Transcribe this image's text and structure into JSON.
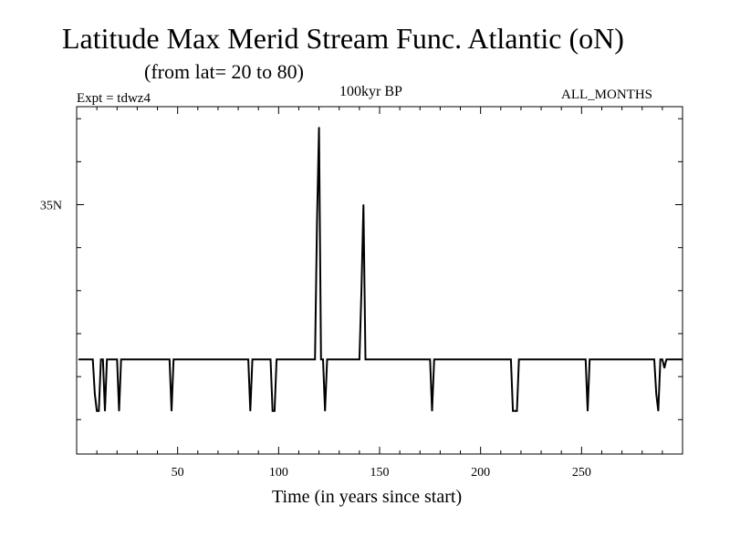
{
  "chart_data": {
    "type": "line",
    "title": "Latitude Max Merid Stream Func. Atlantic (oN)",
    "subtitle": "(from lat= 20 to 80)",
    "experiment": "Expt = tdwz4",
    "period": "100kyr BP",
    "months": "ALL_MONTHS",
    "xlabel": "Time (in years since start)",
    "ylabel": "",
    "xlim": [
      0,
      300
    ],
    "ylim": [
      20.5,
      40.7
    ],
    "x_ticks": [
      50,
      100,
      150,
      200,
      250
    ],
    "x_tick_labels": [
      "50",
      "100",
      "150",
      "200",
      "250"
    ],
    "y_ticks": [
      35
    ],
    "y_tick_labels": [
      "35N"
    ],
    "grid": false,
    "series": [
      {
        "color": "#000000",
        "points": [
          [
            1,
            26.0
          ],
          [
            8,
            26.0
          ],
          [
            9,
            24.0
          ],
          [
            10,
            23.0
          ],
          [
            11,
            23.0
          ],
          [
            12,
            26.0
          ],
          [
            13,
            26.0
          ],
          [
            14,
            23.0
          ],
          [
            15,
            26.0
          ],
          [
            20,
            26.0
          ],
          [
            21,
            23.0
          ],
          [
            22,
            26.0
          ],
          [
            46,
            26.0
          ],
          [
            47,
            23.0
          ],
          [
            48,
            26.0
          ],
          [
            85,
            26.0
          ],
          [
            86,
            23.0
          ],
          [
            87,
            26.0
          ],
          [
            96,
            26.0
          ],
          [
            97,
            23.0
          ],
          [
            98,
            23.0
          ],
          [
            99,
            26.0
          ],
          [
            118,
            26.0
          ],
          [
            119,
            34.0
          ],
          [
            120,
            39.5
          ],
          [
            121,
            26.0
          ],
          [
            122,
            26.0
          ],
          [
            123,
            23.0
          ],
          [
            124,
            26.0
          ],
          [
            140,
            26.0
          ],
          [
            141,
            30.0
          ],
          [
            142,
            35.0
          ],
          [
            143,
            26.0
          ],
          [
            175,
            26.0
          ],
          [
            176,
            23.0
          ],
          [
            177,
            26.0
          ],
          [
            215,
            26.0
          ],
          [
            216,
            23.0
          ],
          [
            218,
            23.0
          ],
          [
            219,
            26.0
          ],
          [
            252,
            26.0
          ],
          [
            253,
            23.0
          ],
          [
            254,
            26.0
          ],
          [
            286,
            26.0
          ],
          [
            287,
            24.0
          ],
          [
            288,
            23.0
          ],
          [
            289,
            26.0
          ],
          [
            290,
            26.0
          ],
          [
            291,
            25.5
          ],
          [
            292,
            26.0
          ],
          [
            300,
            26.0
          ]
        ]
      }
    ]
  }
}
